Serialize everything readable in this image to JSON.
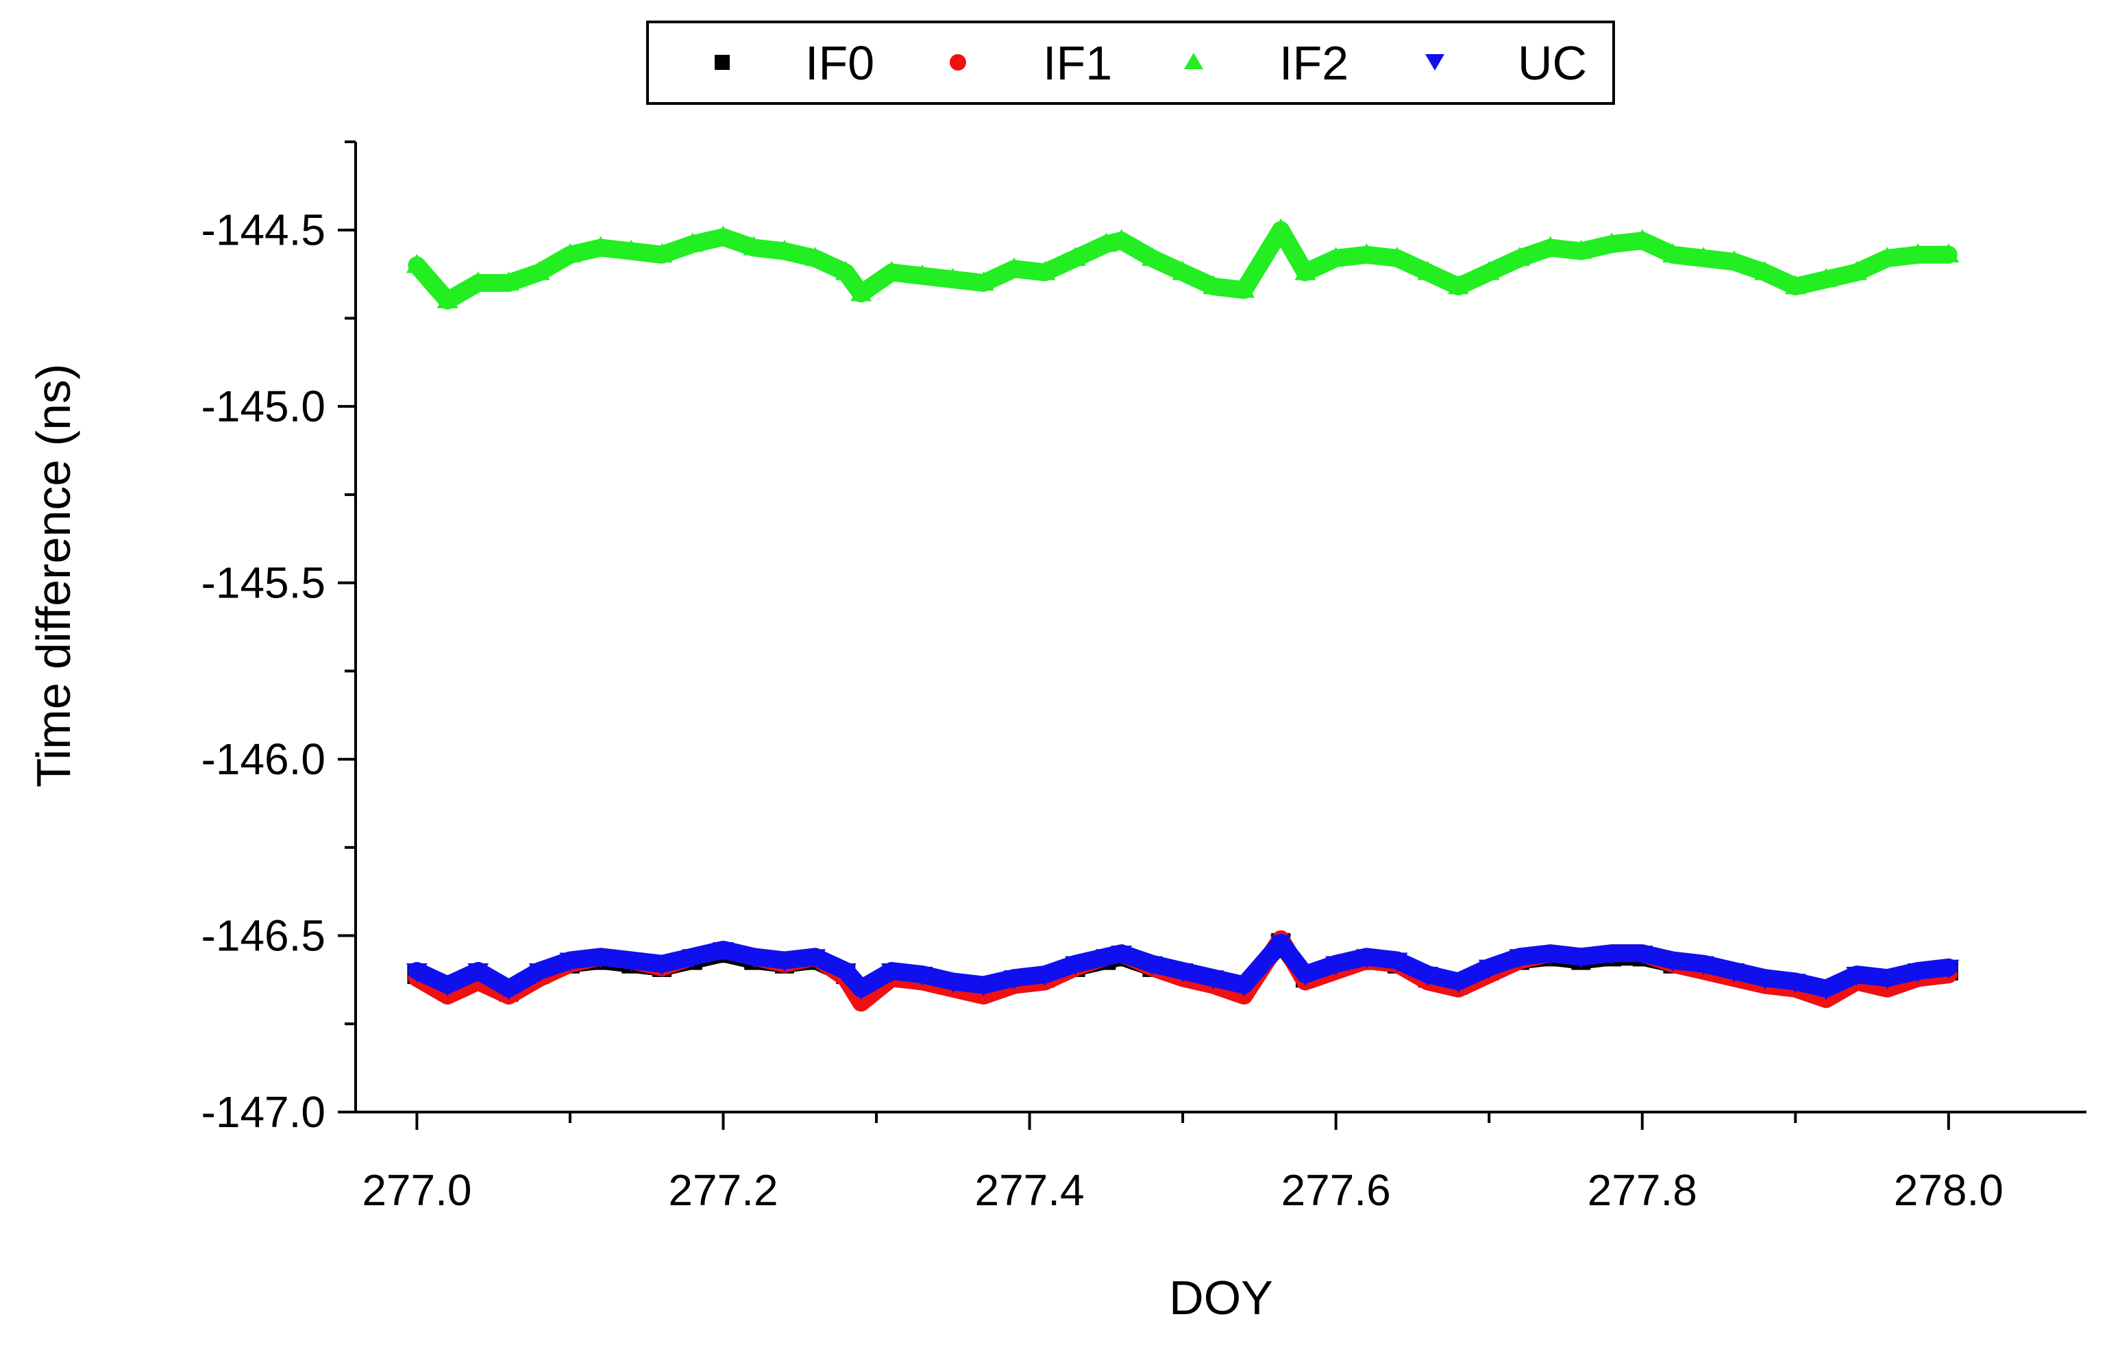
{
  "chart_data": {
    "type": "scatter",
    "xlabel": "DOY",
    "ylabel": "Time difference (ns)",
    "xlim": [
      276.96,
      278.09
    ],
    "ylim": [
      -147.0,
      -144.25
    ],
    "x_ticks": [
      277.0,
      277.2,
      277.4,
      277.6,
      277.8,
      278.0
    ],
    "x_tick_labels": [
      "277.0",
      "277.2",
      "277.4",
      "277.6",
      "277.8",
      "278.0"
    ],
    "y_ticks": [
      -144.5,
      -145.0,
      -145.5,
      -146.0,
      -146.5,
      -147.0
    ],
    "y_tick_labels": [
      "-144.5",
      "-145.0",
      "-145.5",
      "-146.0",
      "-146.5",
      "-147.0"
    ],
    "grid": false,
    "legend_position": "top-center",
    "series": [
      {
        "name": "IF0",
        "marker": "square",
        "color": "#000000",
        "x": [
          277.0,
          277.02,
          277.04,
          277.06,
          277.08,
          277.1,
          277.12,
          277.14,
          277.16,
          277.18,
          277.2,
          277.22,
          277.24,
          277.26,
          277.28,
          277.29,
          277.31,
          277.33,
          277.35,
          277.37,
          277.39,
          277.41,
          277.43,
          277.45,
          277.46,
          277.48,
          277.5,
          277.52,
          277.54,
          277.564,
          277.58,
          277.6,
          277.62,
          277.64,
          277.66,
          277.68,
          277.7,
          277.72,
          277.74,
          277.76,
          277.78,
          277.8,
          277.82,
          277.84,
          277.86,
          277.88,
          277.9,
          277.92,
          277.94,
          277.96,
          277.98,
          278.0
        ],
        "y": [
          -146.61,
          -146.65,
          -146.62,
          -146.66,
          -146.61,
          -146.58,
          -146.57,
          -146.58,
          -146.59,
          -146.57,
          -146.55,
          -146.57,
          -146.58,
          -146.57,
          -146.61,
          -146.66,
          -146.61,
          -146.62,
          -146.64,
          -146.65,
          -146.63,
          -146.62,
          -146.59,
          -146.57,
          -146.56,
          -146.59,
          -146.61,
          -146.63,
          -146.65,
          -146.52,
          -146.62,
          -146.59,
          -146.57,
          -146.58,
          -146.62,
          -146.64,
          -146.6,
          -146.57,
          -146.56,
          -146.57,
          -146.56,
          -146.56,
          -146.58,
          -146.59,
          -146.61,
          -146.63,
          -146.64,
          -146.66,
          -146.62,
          -146.63,
          -146.61,
          -146.6
        ]
      },
      {
        "name": "IF1",
        "marker": "circle",
        "color": "#ee1111",
        "x": [
          277.0,
          277.02,
          277.04,
          277.06,
          277.08,
          277.1,
          277.12,
          277.14,
          277.16,
          277.18,
          277.2,
          277.22,
          277.24,
          277.26,
          277.28,
          277.29,
          277.31,
          277.33,
          277.35,
          277.37,
          277.39,
          277.41,
          277.43,
          277.45,
          277.46,
          277.48,
          277.5,
          277.52,
          277.54,
          277.564,
          277.58,
          277.6,
          277.62,
          277.64,
          277.66,
          277.68,
          277.7,
          277.72,
          277.74,
          277.76,
          277.78,
          277.8,
          277.82,
          277.84,
          277.86,
          277.88,
          277.9,
          277.92,
          277.94,
          277.96,
          277.98,
          278.0
        ],
        "y": [
          -146.62,
          -146.67,
          -146.63,
          -146.67,
          -146.62,
          -146.58,
          -146.56,
          -146.57,
          -146.59,
          -146.56,
          -146.54,
          -146.56,
          -146.58,
          -146.56,
          -146.62,
          -146.69,
          -146.62,
          -146.63,
          -146.65,
          -146.67,
          -146.64,
          -146.63,
          -146.59,
          -146.56,
          -146.55,
          -146.59,
          -146.62,
          -146.64,
          -146.67,
          -146.51,
          -146.63,
          -146.6,
          -146.57,
          -146.58,
          -146.63,
          -146.65,
          -146.61,
          -146.57,
          -146.55,
          -146.56,
          -146.55,
          -146.55,
          -146.58,
          -146.6,
          -146.62,
          -146.64,
          -146.65,
          -146.68,
          -146.63,
          -146.65,
          -146.62,
          -146.61
        ]
      },
      {
        "name": "IF2",
        "marker": "triangle-up",
        "color": "#22ee22",
        "x": [
          277.0,
          277.02,
          277.04,
          277.06,
          277.08,
          277.1,
          277.12,
          277.14,
          277.16,
          277.18,
          277.2,
          277.22,
          277.24,
          277.26,
          277.28,
          277.29,
          277.31,
          277.33,
          277.35,
          277.37,
          277.39,
          277.41,
          277.43,
          277.45,
          277.46,
          277.48,
          277.5,
          277.52,
          277.54,
          277.564,
          277.58,
          277.6,
          277.62,
          277.64,
          277.66,
          277.68,
          277.7,
          277.72,
          277.74,
          277.76,
          277.78,
          277.8,
          277.82,
          277.84,
          277.86,
          277.88,
          277.9,
          277.92,
          277.94,
          277.96,
          277.98,
          278.0
        ],
        "y": [
          -144.6,
          -144.7,
          -144.65,
          -144.65,
          -144.62,
          -144.57,
          -144.55,
          -144.56,
          -144.57,
          -144.54,
          -144.52,
          -144.55,
          -144.56,
          -144.58,
          -144.62,
          -144.68,
          -144.62,
          -144.63,
          -144.64,
          -144.65,
          -144.61,
          -144.62,
          -144.58,
          -144.54,
          -144.53,
          -144.58,
          -144.62,
          -144.66,
          -144.67,
          -144.5,
          -144.62,
          -144.58,
          -144.57,
          -144.58,
          -144.62,
          -144.66,
          -144.62,
          -144.58,
          -144.55,
          -144.56,
          -144.54,
          -144.53,
          -144.57,
          -144.58,
          -144.59,
          -144.62,
          -144.66,
          -144.64,
          -144.62,
          -144.58,
          -144.57,
          -144.57
        ]
      },
      {
        "name": "UC",
        "marker": "triangle-down",
        "color": "#1010ee",
        "x": [
          277.0,
          277.02,
          277.04,
          277.06,
          277.08,
          277.1,
          277.12,
          277.14,
          277.16,
          277.18,
          277.2,
          277.22,
          277.24,
          277.26,
          277.28,
          277.29,
          277.31,
          277.33,
          277.35,
          277.37,
          277.39,
          277.41,
          277.43,
          277.45,
          277.46,
          277.48,
          277.5,
          277.52,
          277.54,
          277.564,
          277.58,
          277.6,
          277.62,
          277.64,
          277.66,
          277.68,
          277.7,
          277.72,
          277.74,
          277.76,
          277.78,
          277.8,
          277.82,
          277.84,
          277.86,
          277.88,
          277.9,
          277.92,
          277.94,
          277.96,
          277.98,
          278.0
        ],
        "y": [
          -146.6,
          -146.64,
          -146.6,
          -146.65,
          -146.6,
          -146.57,
          -146.56,
          -146.57,
          -146.58,
          -146.56,
          -146.54,
          -146.56,
          -146.57,
          -146.56,
          -146.6,
          -146.65,
          -146.6,
          -146.61,
          -146.63,
          -146.64,
          -146.62,
          -146.61,
          -146.58,
          -146.56,
          -146.55,
          -146.58,
          -146.6,
          -146.62,
          -146.64,
          -146.52,
          -146.61,
          -146.58,
          -146.56,
          -146.57,
          -146.61,
          -146.63,
          -146.59,
          -146.56,
          -146.55,
          -146.56,
          -146.55,
          -146.55,
          -146.57,
          -146.58,
          -146.6,
          -146.62,
          -146.63,
          -146.65,
          -146.61,
          -146.62,
          -146.6,
          -146.59
        ]
      }
    ]
  }
}
